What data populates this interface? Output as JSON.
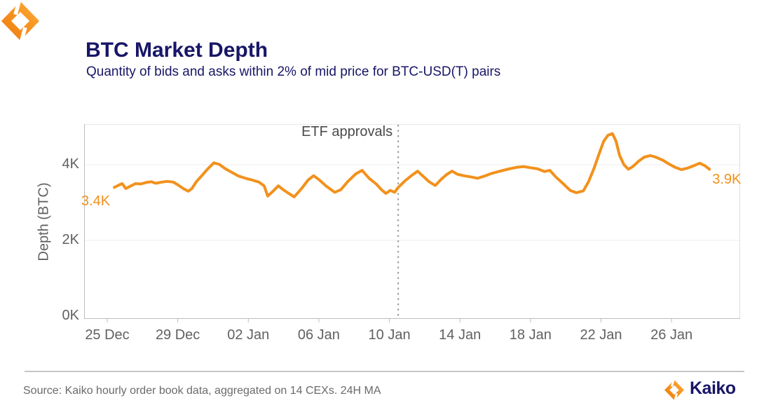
{
  "header": {
    "title": "BTC Market Depth",
    "subtitle": "Quantity of bids and asks within 2% of mid price for BTC-USD(T) pairs"
  },
  "chart_data": {
    "type": "line",
    "title": "BTC Market Depth",
    "ylabel": "Depth (BTC)",
    "xlabel": "",
    "y_unit": "K BTC",
    "x_unit": "days since 25 Dec",
    "xlim": [
      -1.31,
      35.89
    ],
    "ylim": [
      0,
      5.07
    ],
    "grid": "horizontal",
    "legend": "none",
    "line_color": "#F2911C",
    "x_ticks": [
      {
        "day": 0,
        "label": "25 Dec"
      },
      {
        "day": 4,
        "label": "29 Dec"
      },
      {
        "day": 8,
        "label": "02 Jan"
      },
      {
        "day": 12,
        "label": "06 Jan"
      },
      {
        "day": 16,
        "label": "10 Jan"
      },
      {
        "day": 20,
        "label": "14 Jan"
      },
      {
        "day": 24,
        "label": "18 Jan"
      },
      {
        "day": 28,
        "label": "22 Jan"
      },
      {
        "day": 32,
        "label": "26 Jan"
      }
    ],
    "y_ticks": [
      {
        "value": 0,
        "label": "0K"
      },
      {
        "value": 2,
        "label": "2K"
      },
      {
        "value": 4,
        "label": "4K"
      }
    ],
    "event_line": {
      "label": "ETF approvals",
      "day": 16.5
    },
    "start_label": "3.4K",
    "end_label": "3.9K",
    "series": [
      {
        "name": "BTC depth within 2% of mid price, 24H MA",
        "points": [
          [
            0.4,
            3.4
          ],
          [
            0.7,
            3.47
          ],
          [
            0.85,
            3.5
          ],
          [
            1.05,
            3.37
          ],
          [
            1.3,
            3.43
          ],
          [
            1.6,
            3.5
          ],
          [
            1.9,
            3.49
          ],
          [
            2.2,
            3.53
          ],
          [
            2.5,
            3.55
          ],
          [
            2.75,
            3.51
          ],
          [
            3.1,
            3.54
          ],
          [
            3.4,
            3.56
          ],
          [
            3.75,
            3.54
          ],
          [
            4.0,
            3.47
          ],
          [
            4.35,
            3.36
          ],
          [
            4.6,
            3.3
          ],
          [
            4.8,
            3.37
          ],
          [
            5.05,
            3.55
          ],
          [
            5.4,
            3.73
          ],
          [
            5.7,
            3.89
          ],
          [
            6.05,
            4.05
          ],
          [
            6.35,
            4.01
          ],
          [
            6.7,
            3.89
          ],
          [
            7.05,
            3.8
          ],
          [
            7.45,
            3.7
          ],
          [
            7.85,
            3.64
          ],
          [
            8.25,
            3.59
          ],
          [
            8.6,
            3.54
          ],
          [
            8.9,
            3.44
          ],
          [
            9.1,
            3.17
          ],
          [
            9.4,
            3.3
          ],
          [
            9.7,
            3.44
          ],
          [
            9.95,
            3.35
          ],
          [
            10.2,
            3.27
          ],
          [
            10.6,
            3.15
          ],
          [
            11.0,
            3.36
          ],
          [
            11.4,
            3.6
          ],
          [
            11.7,
            3.71
          ],
          [
            12.0,
            3.61
          ],
          [
            12.4,
            3.44
          ],
          [
            12.9,
            3.27
          ],
          [
            13.25,
            3.34
          ],
          [
            13.65,
            3.56
          ],
          [
            14.1,
            3.76
          ],
          [
            14.45,
            3.85
          ],
          [
            14.85,
            3.64
          ],
          [
            15.25,
            3.49
          ],
          [
            15.55,
            3.34
          ],
          [
            15.8,
            3.24
          ],
          [
            16.05,
            3.32
          ],
          [
            16.3,
            3.27
          ],
          [
            16.5,
            3.4
          ],
          [
            16.9,
            3.58
          ],
          [
            17.3,
            3.73
          ],
          [
            17.6,
            3.83
          ],
          [
            17.95,
            3.68
          ],
          [
            18.25,
            3.55
          ],
          [
            18.6,
            3.45
          ],
          [
            18.95,
            3.62
          ],
          [
            19.25,
            3.74
          ],
          [
            19.55,
            3.83
          ],
          [
            19.85,
            3.75
          ],
          [
            20.2,
            3.71
          ],
          [
            20.6,
            3.68
          ],
          [
            21.0,
            3.64
          ],
          [
            21.4,
            3.7
          ],
          [
            21.8,
            3.77
          ],
          [
            22.2,
            3.82
          ],
          [
            22.7,
            3.88
          ],
          [
            23.2,
            3.93
          ],
          [
            23.6,
            3.95
          ],
          [
            24.0,
            3.92
          ],
          [
            24.4,
            3.89
          ],
          [
            24.8,
            3.82
          ],
          [
            25.1,
            3.85
          ],
          [
            25.45,
            3.67
          ],
          [
            25.85,
            3.5
          ],
          [
            26.25,
            3.32
          ],
          [
            26.6,
            3.26
          ],
          [
            27.0,
            3.31
          ],
          [
            27.3,
            3.56
          ],
          [
            27.6,
            3.9
          ],
          [
            27.9,
            4.3
          ],
          [
            28.15,
            4.62
          ],
          [
            28.4,
            4.78
          ],
          [
            28.65,
            4.82
          ],
          [
            28.85,
            4.62
          ],
          [
            29.05,
            4.25
          ],
          [
            29.3,
            4.0
          ],
          [
            29.55,
            3.88
          ],
          [
            29.8,
            3.95
          ],
          [
            30.15,
            4.1
          ],
          [
            30.45,
            4.2
          ],
          [
            30.8,
            4.24
          ],
          [
            31.1,
            4.2
          ],
          [
            31.5,
            4.12
          ],
          [
            31.85,
            4.02
          ],
          [
            32.2,
            3.93
          ],
          [
            32.55,
            3.87
          ],
          [
            32.9,
            3.91
          ],
          [
            33.25,
            3.97
          ],
          [
            33.6,
            4.04
          ],
          [
            33.9,
            3.97
          ],
          [
            34.15,
            3.88
          ]
        ]
      }
    ]
  },
  "footer": {
    "source": "Source: Kaiko hourly order book data, aggregated on 14 CEXs. 24H MA",
    "brand": "Kaiko"
  },
  "colors": {
    "navy": "#181667",
    "orange": "#F2911C",
    "tick_text": "#616161",
    "annotation_text": "#4a4a4a"
  }
}
